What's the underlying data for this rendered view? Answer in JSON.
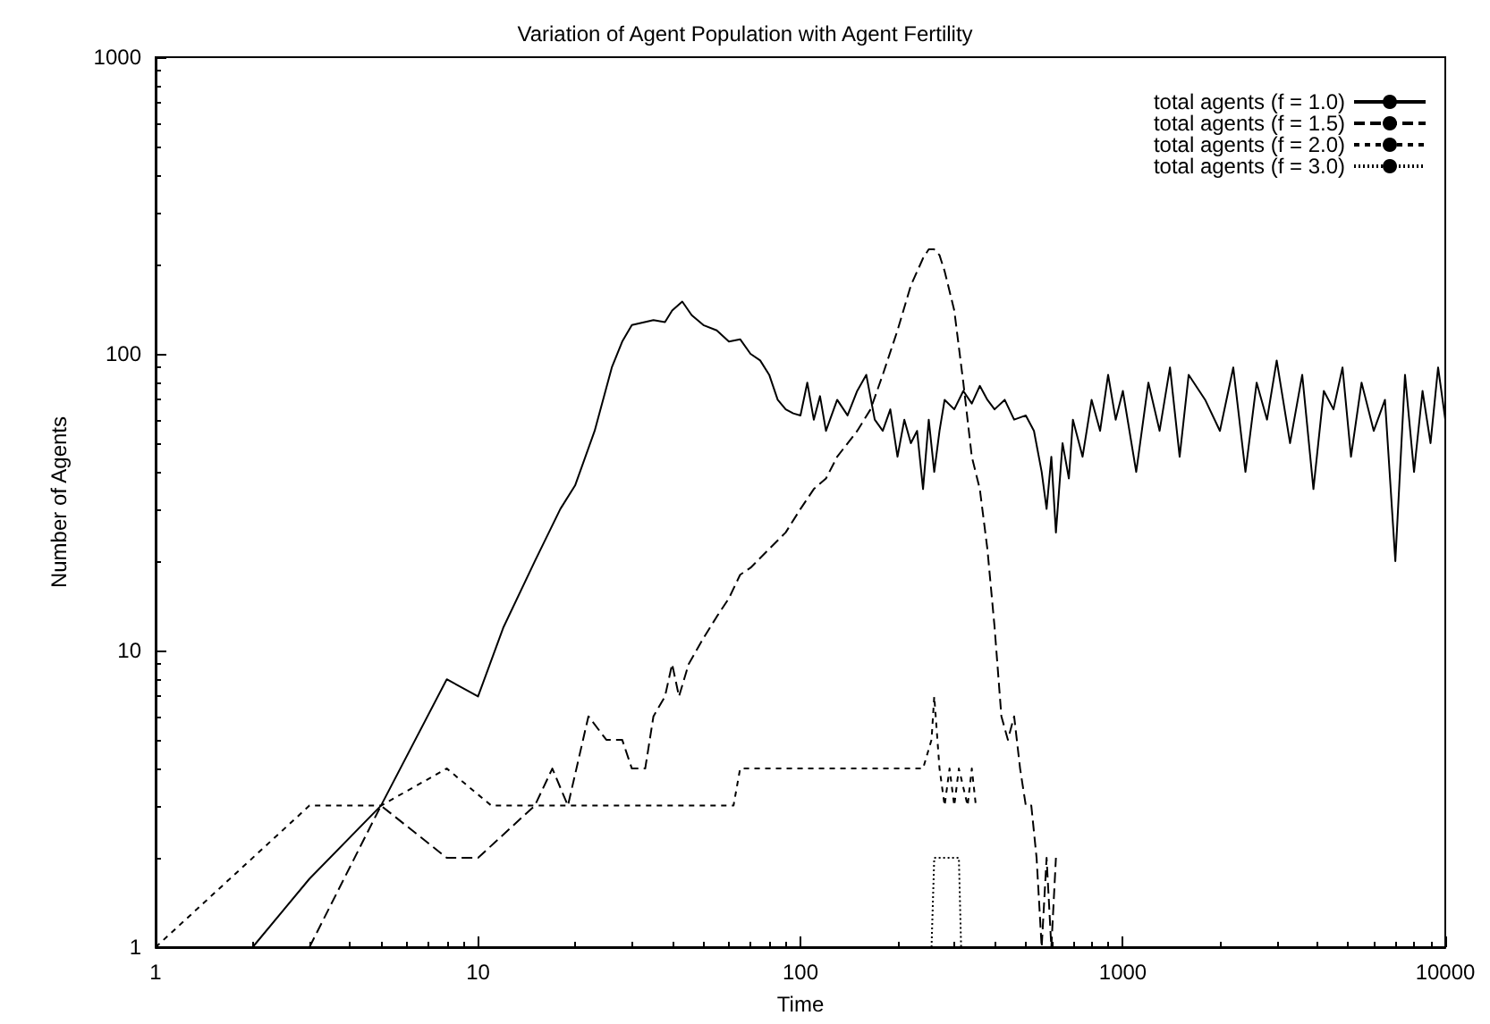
{
  "chart_data": {
    "type": "line",
    "title": "Variation of Agent Population with Agent Fertility",
    "xlabel": "Time",
    "ylabel": "Number of Agents",
    "log": "xy",
    "xlim": [
      1,
      10000
    ],
    "xticks": [
      1,
      10,
      100,
      1000,
      10000
    ],
    "ylim": [
      1,
      1000
    ],
    "yticks": [
      1,
      10,
      100,
      1000
    ],
    "grid": false,
    "legend": "top right",
    "marker": "none",
    "series": [
      {
        "name": "total agents (f = 1.0)",
        "color": "#000000",
        "line_style": "solid",
        "x": [
          2,
          3,
          5,
          8,
          10,
          12,
          15,
          18,
          20,
          23,
          26,
          28,
          30,
          35,
          38,
          40,
          43,
          46,
          50,
          55,
          60,
          65,
          70,
          75,
          80,
          85,
          90,
          95,
          100,
          105,
          110,
          115,
          120,
          130,
          140,
          150,
          160,
          170,
          180,
          190,
          200,
          210,
          220,
          230,
          240,
          250,
          260,
          270,
          280,
          300,
          320,
          340,
          360,
          380,
          400,
          430,
          460,
          500,
          530,
          560,
          580,
          600,
          620,
          650,
          680,
          700,
          750,
          800,
          850,
          900,
          950,
          1000,
          1100,
          1200,
          1300,
          1400,
          1500,
          1600,
          1800,
          2000,
          2200,
          2400,
          2600,
          2800,
          3000,
          3300,
          3600,
          3900,
          4200,
          4500,
          4800,
          5100,
          5500,
          6000,
          6500,
          7000,
          7500,
          8000,
          8500,
          9000,
          9500,
          10000
        ],
        "values": [
          1,
          1.7,
          3,
          8,
          7,
          12,
          20,
          30,
          36,
          55,
          90,
          110,
          125,
          130,
          128,
          140,
          150,
          135,
          125,
          120,
          110,
          112,
          100,
          95,
          85,
          70,
          65,
          63,
          62,
          80,
          60,
          72,
          55,
          70,
          62,
          75,
          85,
          60,
          55,
          65,
          45,
          60,
          50,
          55,
          35,
          60,
          40,
          55,
          70,
          65,
          75,
          68,
          78,
          70,
          65,
          70,
          60,
          62,
          55,
          40,
          30,
          45,
          25,
          50,
          38,
          60,
          45,
          70,
          55,
          85,
          60,
          75,
          40,
          80,
          55,
          90,
          45,
          85,
          70,
          55,
          90,
          40,
          80,
          60,
          95,
          50,
          85,
          35,
          75,
          65,
          90,
          45,
          80,
          55,
          70,
          20,
          85,
          40,
          75,
          50,
          90,
          60
        ]
      },
      {
        "name": "total agents (f = 1.5)",
        "color": "#000000",
        "line_style": "dashed",
        "x": [
          3,
          5,
          8,
          10,
          15,
          17,
          19,
          22,
          25,
          28,
          30,
          33,
          35,
          38,
          40,
          42,
          45,
          50,
          55,
          60,
          65,
          70,
          80,
          90,
          100,
          110,
          120,
          130,
          150,
          165,
          180,
          200,
          220,
          240,
          250,
          260,
          270,
          280,
          300,
          320,
          340,
          360,
          380,
          400,
          420,
          440,
          460,
          480,
          500,
          520,
          540,
          560,
          580,
          600,
          620
        ],
        "values": [
          1,
          3,
          2,
          2,
          3,
          4,
          3,
          6,
          5,
          5,
          4,
          4,
          6,
          7,
          9,
          7,
          9,
          11,
          13,
          15,
          18,
          19,
          22,
          25,
          30,
          35,
          38,
          45,
          55,
          65,
          85,
          120,
          170,
          210,
          225,
          225,
          215,
          190,
          140,
          80,
          45,
          35,
          22,
          12,
          6,
          5,
          6,
          4,
          3,
          3,
          2,
          1,
          2,
          1,
          2
        ]
      },
      {
        "name": "total agents (f = 2.0)",
        "color": "#000000",
        "line_style": "short-dashed",
        "x": [
          1,
          3,
          5,
          8,
          11,
          62,
          65,
          240,
          255,
          260,
          270,
          280,
          290,
          300,
          310,
          330,
          340,
          350
        ],
        "values": [
          1,
          3,
          3,
          4,
          3,
          3,
          4,
          4,
          5,
          7,
          4,
          3,
          4,
          3,
          4,
          3,
          4,
          3
        ]
      },
      {
        "name": "total agents (f = 3.0)",
        "color": "#000000",
        "line_style": "dotted",
        "x": [
          255,
          260,
          265,
          300,
          310,
          315
        ],
        "values": [
          1,
          2,
          2,
          2,
          2,
          1
        ]
      }
    ]
  }
}
